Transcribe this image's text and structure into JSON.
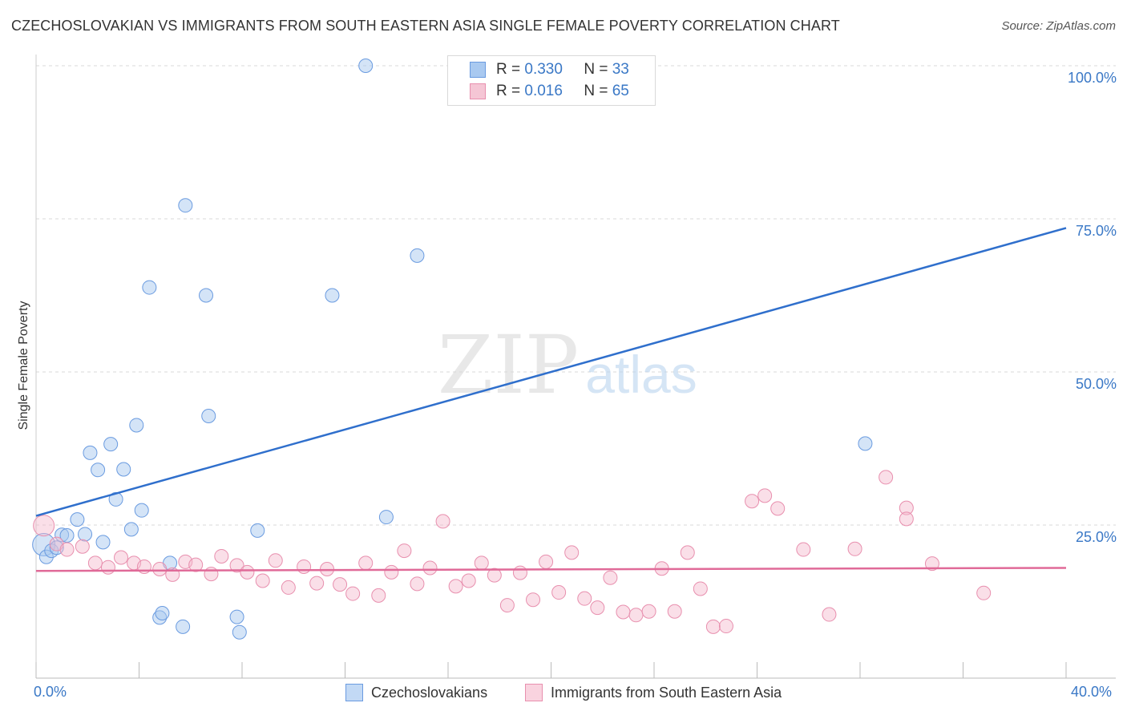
{
  "header": {
    "title": "CZECHOSLOVAKIAN VS IMMIGRANTS FROM SOUTH EASTERN ASIA SINGLE FEMALE POVERTY CORRELATION CHART",
    "source": "Source: ZipAtlas.com"
  },
  "watermark": {
    "zip": "ZIP",
    "atlas": "atlas"
  },
  "legend": {
    "r_label": "R =",
    "n_label": "N =",
    "series_a": {
      "r": "0.330",
      "n": "33"
    },
    "series_b": {
      "r": "0.016",
      "n": "65"
    }
  },
  "axes": {
    "x_min_label": "0.0%",
    "x_max_label": "40.0%",
    "y_label": "Single Female Poverty",
    "y_ticks": [
      "25.0%",
      "50.0%",
      "75.0%",
      "100.0%"
    ]
  },
  "colors": {
    "blue_fill": "#a9c9f0",
    "blue_stroke": "#6a9be0",
    "blue_line": "#2f6fcc",
    "pink_fill": "#f5b8cb",
    "pink_stroke": "#e88fae",
    "pink_line": "#e06a98",
    "grid": "#d8d8d8",
    "axis_text": "#3a78c6"
  },
  "chart_data": {
    "type": "scatter",
    "title": "CZECHOSLOVAKIAN VS IMMIGRANTS FROM SOUTH EASTERN ASIA SINGLE FEMALE POVERTY CORRELATION CHART",
    "xlabel": "",
    "ylabel": "Single Female Poverty",
    "xlim": [
      0,
      40
    ],
    "ylim": [
      0,
      102
    ],
    "y_gridlines": [
      25,
      50,
      75,
      100
    ],
    "series": [
      {
        "name": "Czechoslovakians",
        "color": "#a9c9f0",
        "r": 0.33,
        "n": 33,
        "trend": {
          "x0": 0,
          "y0": 26.5,
          "x1": 40,
          "y1": 73.5
        },
        "points": [
          [
            0.3,
            21.8
          ],
          [
            0.4,
            19.8
          ],
          [
            0.6,
            20.8
          ],
          [
            0.8,
            21.3
          ],
          [
            1.0,
            23.4
          ],
          [
            1.2,
            23.3
          ],
          [
            1.6,
            25.9
          ],
          [
            1.9,
            23.5
          ],
          [
            2.1,
            36.8
          ],
          [
            2.4,
            34.0
          ],
          [
            2.6,
            22.2
          ],
          [
            2.9,
            38.2
          ],
          [
            3.1,
            29.2
          ],
          [
            3.4,
            34.1
          ],
          [
            3.7,
            24.3
          ],
          [
            3.9,
            41.3
          ],
          [
            4.1,
            27.4
          ],
          [
            4.4,
            63.8
          ],
          [
            4.8,
            9.9
          ],
          [
            4.9,
            10.6
          ],
          [
            5.2,
            18.8
          ],
          [
            5.7,
            8.4
          ],
          [
            5.8,
            77.2
          ],
          [
            6.6,
            62.5
          ],
          [
            6.7,
            42.8
          ],
          [
            7.8,
            10.0
          ],
          [
            7.9,
            7.5
          ],
          [
            8.6,
            24.1
          ],
          [
            11.5,
            62.5
          ],
          [
            12.8,
            100.0
          ],
          [
            13.6,
            26.3
          ],
          [
            14.8,
            69.0
          ],
          [
            32.2,
            38.3
          ]
        ]
      },
      {
        "name": "Immigrants from South Eastern Asia",
        "color": "#f5b8cb",
        "r": 0.016,
        "n": 65,
        "trend": {
          "x0": 0,
          "y0": 17.5,
          "x1": 40,
          "y1": 18.0
        },
        "points": [
          [
            0.3,
            24.9
          ],
          [
            0.8,
            21.9
          ],
          [
            1.2,
            21.0
          ],
          [
            1.8,
            21.5
          ],
          [
            2.3,
            18.8
          ],
          [
            2.8,
            18.1
          ],
          [
            3.3,
            19.7
          ],
          [
            3.8,
            18.8
          ],
          [
            4.2,
            18.2
          ],
          [
            4.8,
            17.8
          ],
          [
            5.3,
            16.9
          ],
          [
            5.8,
            19.0
          ],
          [
            6.2,
            18.5
          ],
          [
            6.8,
            17.0
          ],
          [
            7.2,
            19.9
          ],
          [
            7.8,
            18.4
          ],
          [
            8.2,
            17.3
          ],
          [
            8.8,
            15.9
          ],
          [
            9.3,
            19.2
          ],
          [
            9.8,
            14.8
          ],
          [
            10.4,
            18.2
          ],
          [
            10.9,
            15.5
          ],
          [
            11.3,
            17.8
          ],
          [
            11.8,
            15.3
          ],
          [
            12.3,
            13.8
          ],
          [
            12.8,
            18.8
          ],
          [
            13.3,
            13.5
          ],
          [
            13.8,
            17.3
          ],
          [
            14.3,
            20.8
          ],
          [
            14.8,
            15.4
          ],
          [
            15.3,
            18.0
          ],
          [
            15.8,
            25.6
          ],
          [
            16.3,
            15.0
          ],
          [
            16.8,
            15.9
          ],
          [
            17.3,
            18.8
          ],
          [
            17.8,
            16.8
          ],
          [
            18.3,
            11.9
          ],
          [
            18.8,
            17.2
          ],
          [
            19.3,
            12.8
          ],
          [
            19.8,
            19.0
          ],
          [
            20.3,
            14.0
          ],
          [
            20.8,
            20.5
          ],
          [
            21.3,
            13.0
          ],
          [
            21.8,
            11.5
          ],
          [
            22.3,
            16.4
          ],
          [
            22.8,
            10.8
          ],
          [
            23.3,
            10.3
          ],
          [
            23.8,
            10.9
          ],
          [
            24.3,
            17.9
          ],
          [
            24.8,
            10.9
          ],
          [
            25.3,
            20.5
          ],
          [
            25.8,
            14.6
          ],
          [
            26.3,
            8.4
          ],
          [
            26.8,
            8.5
          ],
          [
            27.8,
            28.9
          ],
          [
            28.3,
            29.8
          ],
          [
            28.8,
            27.7
          ],
          [
            29.8,
            21.0
          ],
          [
            30.8,
            10.4
          ],
          [
            31.8,
            21.1
          ],
          [
            33.0,
            32.8
          ],
          [
            33.8,
            27.8
          ],
          [
            33.8,
            26.0
          ],
          [
            34.8,
            18.7
          ],
          [
            36.8,
            13.9
          ]
        ]
      }
    ]
  }
}
